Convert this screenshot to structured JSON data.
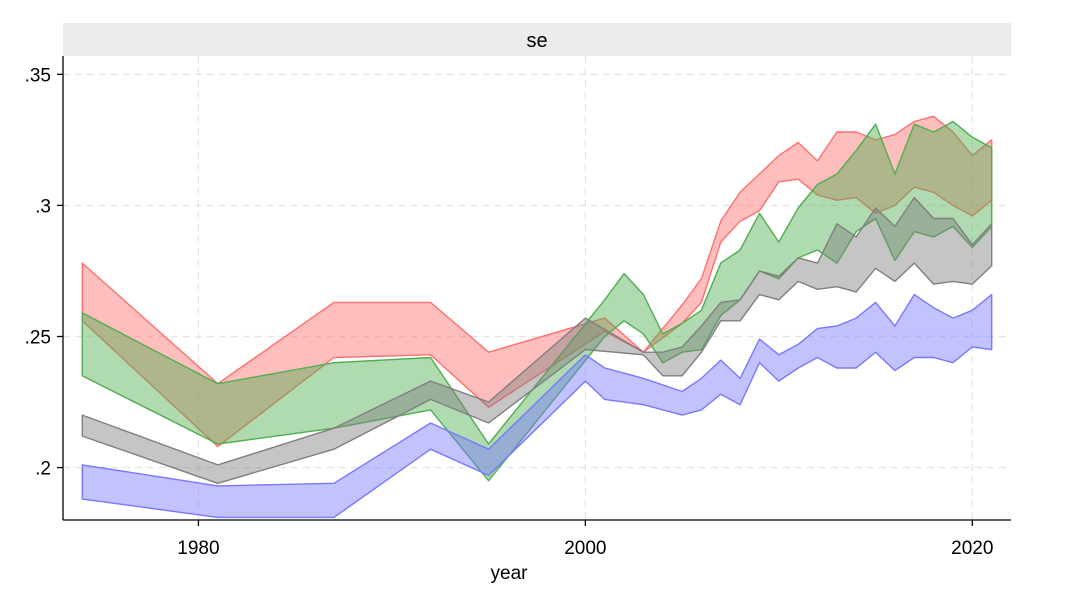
{
  "chart_data": {
    "type": "area",
    "panel_title": "se",
    "xlabel": "year",
    "ylabel": "",
    "xlim": [
      1973,
      2022
    ],
    "ylim": [
      0.18,
      0.357
    ],
    "x_ticks": [
      {
        "value": 1980,
        "label": "1980"
      },
      {
        "value": 2000,
        "label": "2000"
      },
      {
        "value": 2020,
        "label": "2020"
      }
    ],
    "y_ticks": [
      {
        "value": 0.2,
        "label": ".2"
      },
      {
        "value": 0.25,
        "label": ".25"
      },
      {
        "value": 0.3,
        "label": ".3"
      },
      {
        "value": 0.35,
        "label": ".35"
      }
    ],
    "grid": true,
    "series": [
      {
        "color": "#ff6f6f",
        "x": [
          1974,
          1981,
          1987,
          1992,
          1995,
          2001,
          2003,
          2005,
          2006,
          2007,
          2008,
          2009,
          2010,
          2011,
          2012,
          2013,
          2014,
          2015,
          2016,
          2017,
          2018,
          2019,
          2020,
          2021
        ],
        "upper": [
          0.278,
          0.232,
          0.263,
          0.263,
          0.244,
          0.257,
          0.244,
          0.262,
          0.272,
          0.294,
          0.305,
          0.312,
          0.319,
          0.324,
          0.317,
          0.328,
          0.328,
          0.325,
          0.327,
          0.332,
          0.334,
          0.328,
          0.319,
          0.325
        ],
        "lower": [
          0.256,
          0.208,
          0.242,
          0.243,
          0.223,
          0.252,
          0.244,
          0.255,
          0.263,
          0.286,
          0.294,
          0.298,
          0.309,
          0.31,
          0.304,
          0.302,
          0.303,
          0.297,
          0.3,
          0.307,
          0.305,
          0.3,
          0.296,
          0.302
        ]
      },
      {
        "color": "#4fae4f",
        "x": [
          1974,
          1981,
          1987,
          1992,
          1995,
          2001,
          2002,
          2003,
          2004,
          2005,
          2006,
          2007,
          2008,
          2009,
          2010,
          2011,
          2012,
          2013,
          2014,
          2015,
          2016,
          2017,
          2018,
          2019,
          2020,
          2021
        ],
        "upper": [
          0.259,
          0.232,
          0.24,
          0.242,
          0.209,
          0.264,
          0.274,
          0.266,
          0.251,
          0.255,
          0.26,
          0.278,
          0.283,
          0.297,
          0.286,
          0.299,
          0.308,
          0.312,
          0.321,
          0.331,
          0.312,
          0.331,
          0.328,
          0.332,
          0.326,
          0.322
        ],
        "lower": [
          0.235,
          0.209,
          0.215,
          0.222,
          0.195,
          0.25,
          0.256,
          0.251,
          0.24,
          0.244,
          0.245,
          0.258,
          0.264,
          0.275,
          0.272,
          0.28,
          0.283,
          0.278,
          0.29,
          0.295,
          0.279,
          0.29,
          0.288,
          0.292,
          0.284,
          0.292
        ]
      },
      {
        "color": "#7f7f7f",
        "x": [
          1974,
          1981,
          1987,
          1992,
          1995,
          2000,
          2003,
          2004,
          2005,
          2006,
          2007,
          2008,
          2009,
          2010,
          2011,
          2012,
          2013,
          2014,
          2015,
          2016,
          2017,
          2018,
          2019,
          2020,
          2021
        ],
        "upper": [
          0.22,
          0.201,
          0.215,
          0.233,
          0.225,
          0.257,
          0.244,
          0.244,
          0.246,
          0.254,
          0.263,
          0.264,
          0.275,
          0.273,
          0.28,
          0.278,
          0.293,
          0.288,
          0.299,
          0.292,
          0.303,
          0.295,
          0.295,
          0.285,
          0.293
        ],
        "lower": [
          0.212,
          0.194,
          0.207,
          0.226,
          0.217,
          0.245,
          0.243,
          0.235,
          0.235,
          0.244,
          0.256,
          0.256,
          0.266,
          0.264,
          0.271,
          0.268,
          0.269,
          0.267,
          0.276,
          0.271,
          0.278,
          0.27,
          0.271,
          0.27,
          0.277
        ]
      },
      {
        "color": "#7878ff",
        "x": [
          1974,
          1981,
          1987,
          1992,
          1995,
          2000,
          2001,
          2003,
          2005,
          2006,
          2007,
          2008,
          2009,
          2010,
          2011,
          2012,
          2013,
          2014,
          2015,
          2016,
          2017,
          2018,
          2019,
          2020,
          2021
        ],
        "upper": [
          0.201,
          0.193,
          0.194,
          0.217,
          0.207,
          0.243,
          0.238,
          0.234,
          0.229,
          0.234,
          0.241,
          0.234,
          0.249,
          0.243,
          0.247,
          0.253,
          0.254,
          0.257,
          0.263,
          0.254,
          0.266,
          0.261,
          0.257,
          0.26,
          0.266
        ],
        "lower": [
          0.188,
          0.181,
          0.181,
          0.207,
          0.197,
          0.233,
          0.226,
          0.224,
          0.22,
          0.222,
          0.228,
          0.224,
          0.24,
          0.233,
          0.238,
          0.242,
          0.238,
          0.238,
          0.244,
          0.237,
          0.242,
          0.242,
          0.24,
          0.246,
          0.245
        ]
      }
    ]
  }
}
